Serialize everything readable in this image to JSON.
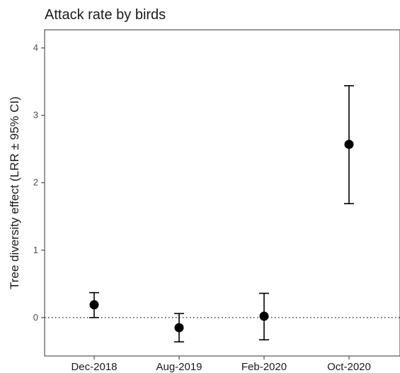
{
  "chart_data": {
    "type": "scatter",
    "title": "Attack rate by birds",
    "xlabel": "",
    "ylabel": "Tree diversity effect (LRR ± 95% CI)",
    "categories": [
      "Dec-2018",
      "Aug-2019",
      "Feb-2020",
      "Oct-2020"
    ],
    "series": [
      {
        "values": [
          0.19,
          -0.15,
          0.02,
          2.57
        ],
        "lower": [
          0.0,
          -0.36,
          -0.33,
          1.69
        ],
        "upper": [
          0.37,
          0.06,
          0.36,
          3.44
        ]
      }
    ],
    "ylim": [
      -0.57,
      4.27
    ],
    "y_ticks": [
      0,
      1,
      2,
      3,
      4
    ],
    "reference_line": 0,
    "reference_line_style": "dotted",
    "grid": false,
    "legend": "none",
    "colors": {
      "point": "#000000",
      "errorbar": "#000000",
      "frame": "#333333",
      "reference": "#000000"
    }
  }
}
